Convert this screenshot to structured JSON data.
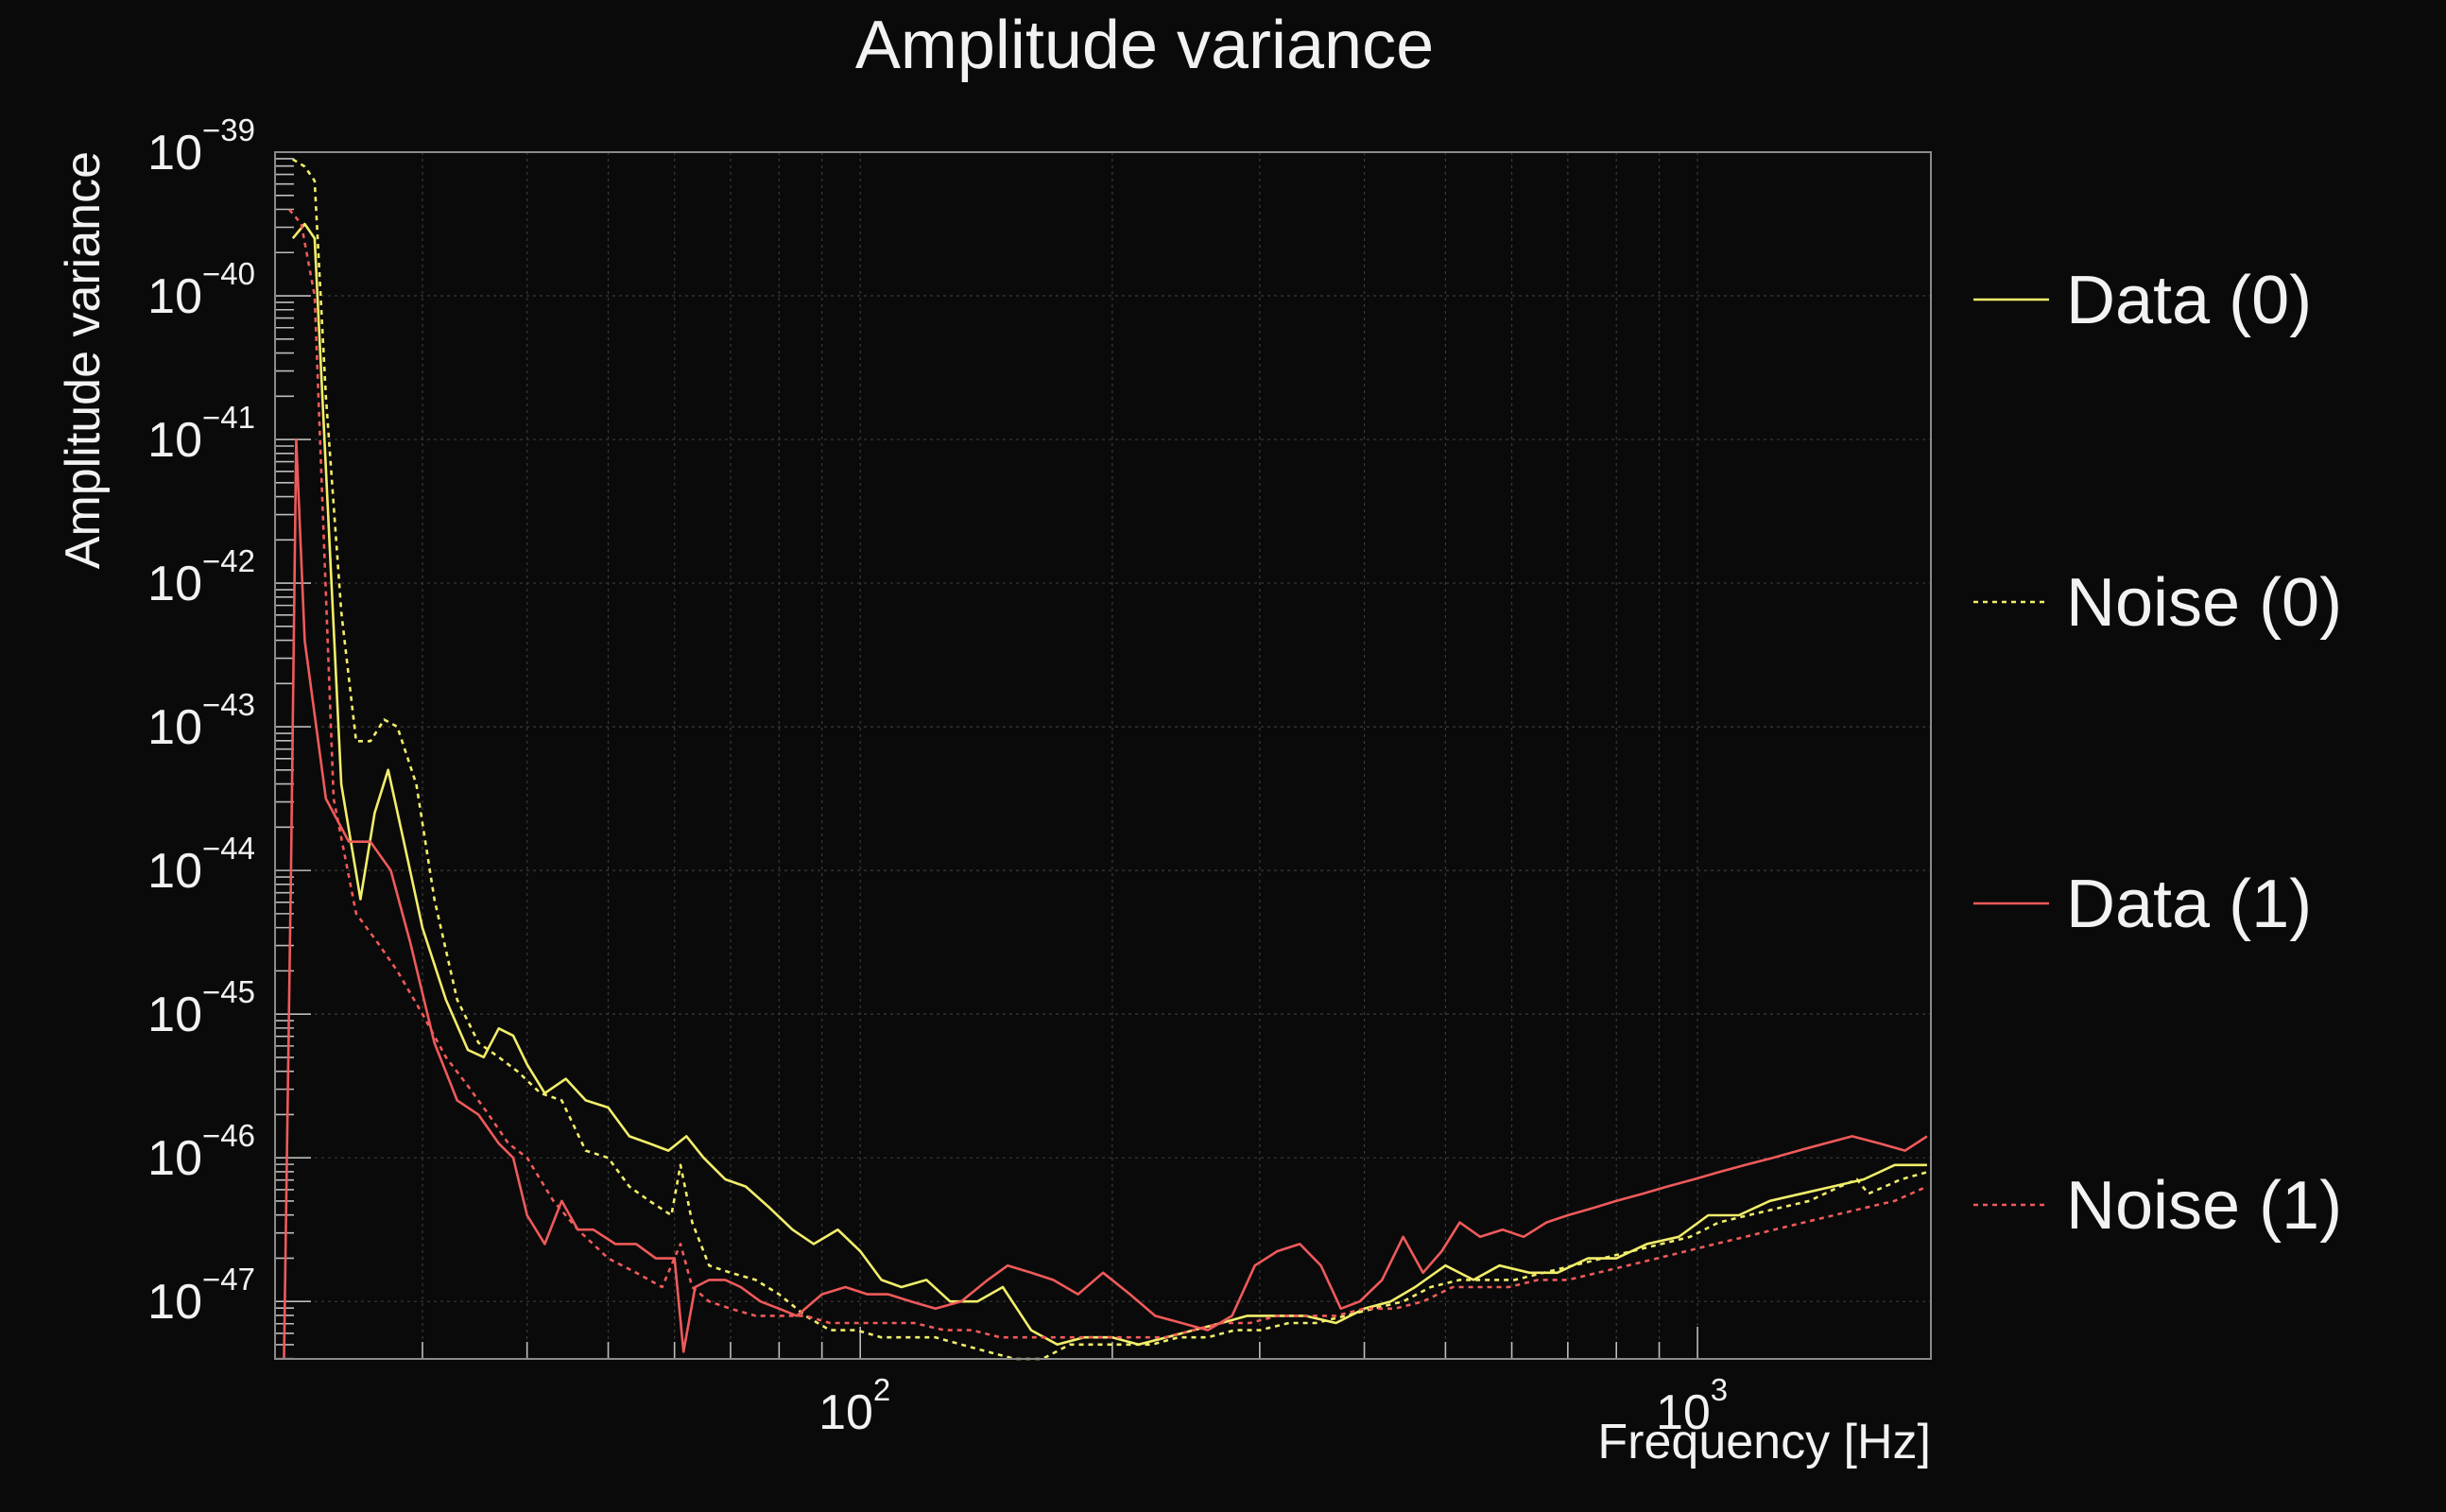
{
  "chart_data": {
    "type": "line",
    "title": "Amplitude variance",
    "xlabel": "Frequency [Hz]",
    "ylabel": "Amplitude variance",
    "x_scale": "log",
    "y_scale": "log",
    "xlim": [
      20,
      1900
    ],
    "ylim_exp": [
      -47.4,
      -39
    ],
    "grid": true,
    "legend_position": "right",
    "x_ticks": [
      {
        "base": "10",
        "exp": "2",
        "value": 100
      },
      {
        "base": "10",
        "exp": "3",
        "value": 1000
      }
    ],
    "y_ticks": [
      {
        "base": "10",
        "exp": "−39",
        "value": -39
      },
      {
        "base": "10",
        "exp": "−40",
        "value": -40
      },
      {
        "base": "10",
        "exp": "−41",
        "value": -41
      },
      {
        "base": "10",
        "exp": "−42",
        "value": -42
      },
      {
        "base": "10",
        "exp": "−43",
        "value": -43
      },
      {
        "base": "10",
        "exp": "−44",
        "value": -44
      },
      {
        "base": "10",
        "exp": "−45",
        "value": -45
      },
      {
        "base": "10",
        "exp": "−46",
        "value": -46
      },
      {
        "base": "10",
        "exp": "−47",
        "value": -47
      }
    ],
    "series": [
      {
        "name": "Data (0)",
        "color": "#f2ee6a",
        "dash": "solid",
        "points": [
          [
            21,
            -39.6
          ],
          [
            21.7,
            -39.5
          ],
          [
            22.3,
            -39.6
          ],
          [
            23,
            -41.2
          ],
          [
            24,
            -43.4
          ],
          [
            25.3,
            -44.2
          ],
          [
            26.3,
            -43.6
          ],
          [
            27.3,
            -43.3
          ],
          [
            28.5,
            -43.8
          ],
          [
            30,
            -44.4
          ],
          [
            32,
            -44.9
          ],
          [
            34,
            -45.25
          ],
          [
            35.5,
            -45.3
          ],
          [
            37,
            -45.1
          ],
          [
            38.5,
            -45.15
          ],
          [
            40,
            -45.35
          ],
          [
            42,
            -45.55
          ],
          [
            44.5,
            -45.45
          ],
          [
            47,
            -45.6
          ],
          [
            50,
            -45.65
          ],
          [
            53,
            -45.85
          ],
          [
            56,
            -45.9
          ],
          [
            59,
            -45.95
          ],
          [
            62,
            -45.85
          ],
          [
            65,
            -46.0
          ],
          [
            69,
            -46.15
          ],
          [
            73,
            -46.2
          ],
          [
            78,
            -46.35
          ],
          [
            83,
            -46.5
          ],
          [
            88,
            -46.6
          ],
          [
            94,
            -46.5
          ],
          [
            100,
            -46.65
          ],
          [
            106,
            -46.85
          ],
          [
            112,
            -46.9
          ],
          [
            120,
            -46.85
          ],
          [
            128,
            -47.0
          ],
          [
            138,
            -47.0
          ],
          [
            148,
            -46.9
          ],
          [
            160,
            -47.2
          ],
          [
            172,
            -47.3
          ],
          [
            185,
            -47.25
          ],
          [
            200,
            -47.25
          ],
          [
            215,
            -47.3
          ],
          [
            232,
            -47.25
          ],
          [
            250,
            -47.2
          ],
          [
            270,
            -47.15
          ],
          [
            290,
            -47.1
          ],
          [
            315,
            -47.1
          ],
          [
            340,
            -47.1
          ],
          [
            370,
            -47.15
          ],
          [
            400,
            -47.05
          ],
          [
            430,
            -47.0
          ],
          [
            460,
            -46.9
          ],
          [
            500,
            -46.75
          ],
          [
            540,
            -46.85
          ],
          [
            580,
            -46.75
          ],
          [
            630,
            -46.8
          ],
          [
            680,
            -46.8
          ],
          [
            740,
            -46.7
          ],
          [
            800,
            -46.7
          ],
          [
            870,
            -46.6
          ],
          [
            950,
            -46.55
          ],
          [
            1030,
            -46.4
          ],
          [
            1120,
            -46.4
          ],
          [
            1220,
            -46.3
          ],
          [
            1330,
            -46.25
          ],
          [
            1450,
            -46.2
          ],
          [
            1580,
            -46.15
          ],
          [
            1720,
            -46.05
          ],
          [
            1880,
            -46.05
          ]
        ]
      },
      {
        "name": "Noise (0)",
        "color": "#f2ee6a",
        "dash": "dotted",
        "points": [
          [
            21,
            -39.05
          ],
          [
            21.7,
            -39.1
          ],
          [
            22.3,
            -39.2
          ],
          [
            23,
            -40.7
          ],
          [
            24,
            -42.2
          ],
          [
            25,
            -43.1
          ],
          [
            26,
            -43.1
          ],
          [
            27,
            -42.95
          ],
          [
            28,
            -43.0
          ],
          [
            29.5,
            -43.4
          ],
          [
            31,
            -44.2
          ],
          [
            33,
            -44.9
          ],
          [
            35,
            -45.2
          ],
          [
            37,
            -45.3
          ],
          [
            39,
            -45.4
          ],
          [
            41.5,
            -45.55
          ],
          [
            44,
            -45.6
          ],
          [
            47,
            -45.95
          ],
          [
            50,
            -46.0
          ],
          [
            53,
            -46.2
          ],
          [
            56,
            -46.3
          ],
          [
            59.5,
            -46.4
          ],
          [
            61,
            -46.05
          ],
          [
            63,
            -46.45
          ],
          [
            66,
            -46.75
          ],
          [
            70,
            -46.8
          ],
          [
            75,
            -46.85
          ],
          [
            80,
            -46.95
          ],
          [
            86,
            -47.1
          ],
          [
            92,
            -47.2
          ],
          [
            99,
            -47.2
          ],
          [
            106,
            -47.25
          ],
          [
            114,
            -47.25
          ],
          [
            123,
            -47.25
          ],
          [
            132,
            -47.3
          ],
          [
            142,
            -47.35
          ],
          [
            153,
            -47.4
          ],
          [
            165,
            -47.4
          ],
          [
            178,
            -47.3
          ],
          [
            192,
            -47.3
          ],
          [
            207,
            -47.3
          ],
          [
            223,
            -47.3
          ],
          [
            240,
            -47.25
          ],
          [
            260,
            -47.25
          ],
          [
            280,
            -47.2
          ],
          [
            300,
            -47.2
          ],
          [
            325,
            -47.15
          ],
          [
            350,
            -47.15
          ],
          [
            380,
            -47.1
          ],
          [
            410,
            -47.05
          ],
          [
            445,
            -47.0
          ],
          [
            480,
            -46.9
          ],
          [
            520,
            -46.85
          ],
          [
            560,
            -46.85
          ],
          [
            605,
            -46.85
          ],
          [
            655,
            -46.8
          ],
          [
            710,
            -46.75
          ],
          [
            770,
            -46.7
          ],
          [
            835,
            -46.65
          ],
          [
            905,
            -46.6
          ],
          [
            980,
            -46.55
          ],
          [
            1060,
            -46.45
          ],
          [
            1150,
            -46.4
          ],
          [
            1250,
            -46.35
          ],
          [
            1360,
            -46.3
          ],
          [
            1480,
            -46.2
          ],
          [
            1550,
            -46.15
          ],
          [
            1600,
            -46.25
          ],
          [
            1750,
            -46.15
          ],
          [
            1880,
            -46.1
          ]
        ]
      },
      {
        "name": "Data (1)",
        "color": "#f05a5a",
        "dash": "solid",
        "points": [
          [
            20.5,
            -47.4
          ],
          [
            20.9,
            -44.0
          ],
          [
            21.2,
            -41.0
          ],
          [
            21.7,
            -42.4
          ],
          [
            23,
            -43.5
          ],
          [
            24.5,
            -43.8
          ],
          [
            26,
            -43.8
          ],
          [
            27.5,
            -44.0
          ],
          [
            29,
            -44.5
          ],
          [
            31,
            -45.2
          ],
          [
            33,
            -45.6
          ],
          [
            35,
            -45.7
          ],
          [
            37,
            -45.9
          ],
          [
            38.5,
            -46.0
          ],
          [
            40,
            -46.4
          ],
          [
            42,
            -46.6
          ],
          [
            44,
            -46.3
          ],
          [
            46,
            -46.5
          ],
          [
            48,
            -46.5
          ],
          [
            51,
            -46.6
          ],
          [
            54,
            -46.6
          ],
          [
            57,
            -46.7
          ],
          [
            60,
            -46.7
          ],
          [
            61.5,
            -47.35
          ],
          [
            63.5,
            -46.9
          ],
          [
            66,
            -46.85
          ],
          [
            69,
            -46.85
          ],
          [
            72,
            -46.9
          ],
          [
            76,
            -47.0
          ],
          [
            80,
            -47.05
          ],
          [
            84,
            -47.1
          ],
          [
            90,
            -46.95
          ],
          [
            96,
            -46.9
          ],
          [
            102,
            -46.95
          ],
          [
            108,
            -46.95
          ],
          [
            115,
            -47.0
          ],
          [
            123,
            -47.05
          ],
          [
            132,
            -47.0
          ],
          [
            142,
            -46.85
          ],
          [
            150,
            -46.75
          ],
          [
            160,
            -46.8
          ],
          [
            170,
            -46.85
          ],
          [
            182,
            -46.95
          ],
          [
            195,
            -46.8
          ],
          [
            210,
            -46.95
          ],
          [
            225,
            -47.1
          ],
          [
            242,
            -47.15
          ],
          [
            260,
            -47.2
          ],
          [
            278,
            -47.1
          ],
          [
            296,
            -46.75
          ],
          [
            315,
            -46.65
          ],
          [
            335,
            -46.6
          ],
          [
            355,
            -46.75
          ],
          [
            375,
            -47.05
          ],
          [
            395,
            -47.0
          ],
          [
            420,
            -46.85
          ],
          [
            445,
            -46.55
          ],
          [
            470,
            -46.8
          ],
          [
            495,
            -46.65
          ],
          [
            520,
            -46.45
          ],
          [
            550,
            -46.55
          ],
          [
            585,
            -46.5
          ],
          [
            620,
            -46.55
          ],
          [
            660,
            -46.45
          ],
          [
            700,
            -46.4
          ],
          [
            750,
            -46.35
          ],
          [
            800,
            -46.3
          ],
          [
            860,
            -46.25
          ],
          [
            920,
            -46.2
          ],
          [
            990,
            -46.15
          ],
          [
            1060,
            -46.1
          ],
          [
            1140,
            -46.05
          ],
          [
            1230,
            -46.0
          ],
          [
            1320,
            -45.95
          ],
          [
            1420,
            -45.9
          ],
          [
            1530,
            -45.85
          ],
          [
            1650,
            -45.9
          ],
          [
            1770,
            -45.95
          ],
          [
            1880,
            -45.85
          ]
        ]
      },
      {
        "name": "Noise (1)",
        "color": "#f05a5a",
        "dash": "dotted",
        "points": [
          [
            20.8,
            -39.4
          ],
          [
            21.5,
            -39.5
          ],
          [
            22.3,
            -40.0
          ],
          [
            23.5,
            -43.5
          ],
          [
            25,
            -44.3
          ],
          [
            26.5,
            -44.5
          ],
          [
            28,
            -44.7
          ],
          [
            30,
            -45.0
          ],
          [
            32,
            -45.3
          ],
          [
            34,
            -45.5
          ],
          [
            36,
            -45.7
          ],
          [
            38,
            -45.9
          ],
          [
            40,
            -46.0
          ],
          [
            43,
            -46.3
          ],
          [
            46,
            -46.5
          ],
          [
            50,
            -46.7
          ],
          [
            54,
            -46.8
          ],
          [
            58,
            -46.9
          ],
          [
            61,
            -46.6
          ],
          [
            63,
            -46.9
          ],
          [
            66,
            -47.0
          ],
          [
            70,
            -47.05
          ],
          [
            75,
            -47.1
          ],
          [
            80,
            -47.1
          ],
          [
            86,
            -47.1
          ],
          [
            92,
            -47.15
          ],
          [
            100,
            -47.15
          ],
          [
            108,
            -47.15
          ],
          [
            116,
            -47.15
          ],
          [
            126,
            -47.2
          ],
          [
            136,
            -47.2
          ],
          [
            147,
            -47.25
          ],
          [
            158,
            -47.25
          ],
          [
            170,
            -47.25
          ],
          [
            184,
            -47.25
          ],
          [
            198,
            -47.25
          ],
          [
            214,
            -47.25
          ],
          [
            231,
            -47.25
          ],
          [
            250,
            -47.2
          ],
          [
            270,
            -47.15
          ],
          [
            292,
            -47.15
          ],
          [
            315,
            -47.1
          ],
          [
            340,
            -47.1
          ],
          [
            370,
            -47.1
          ],
          [
            400,
            -47.05
          ],
          [
            435,
            -47.05
          ],
          [
            470,
            -47.0
          ],
          [
            510,
            -46.9
          ],
          [
            550,
            -46.9
          ],
          [
            595,
            -46.9
          ],
          [
            645,
            -46.85
          ],
          [
            700,
            -46.85
          ],
          [
            760,
            -46.8
          ],
          [
            825,
            -46.75
          ],
          [
            895,
            -46.7
          ],
          [
            970,
            -46.65
          ],
          [
            1050,
            -46.6
          ],
          [
            1140,
            -46.55
          ],
          [
            1235,
            -46.5
          ],
          [
            1340,
            -46.45
          ],
          [
            1455,
            -46.4
          ],
          [
            1580,
            -46.35
          ],
          [
            1720,
            -46.3
          ],
          [
            1880,
            -46.2
          ]
        ]
      }
    ]
  }
}
